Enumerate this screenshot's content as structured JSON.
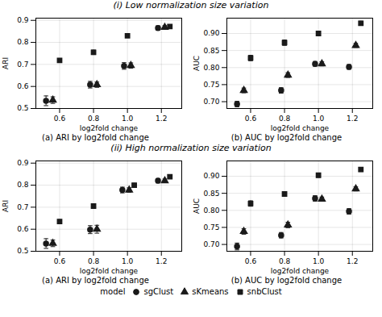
{
  "chart_data": [
    {
      "type": "scatter",
      "title": "(i) Low normalization size variation",
      "subtitle": "(a) ARI by log2fold change",
      "xlabel": "log2fold change",
      "ylabel": "ARI",
      "grid": true,
      "xlim": [
        0.46,
        1.32
      ],
      "xticks": [
        0.6,
        0.8,
        {
          "value": 1.0,
          "label": "1.0"
        },
        1.2
      ],
      "ylim": [
        0.5,
        0.91
      ],
      "yticks": [
        0.5,
        0.6,
        0.7,
        0.8,
        0.9
      ],
      "series": [
        {
          "name": "sgClust",
          "color": "#1a1a1a",
          "marker": "circle",
          "x": [
            0.52,
            0.78,
            0.98,
            1.18
          ],
          "values": [
            0.535,
            0.608,
            0.693,
            0.865
          ],
          "yerr": [
            0.022,
            0.015,
            0.015,
            0.01
          ]
        },
        {
          "name": "sKmeans",
          "color": "#1a1a1a",
          "marker": "triangle",
          "x": [
            0.56,
            0.82,
            1.02,
            1.22
          ],
          "values": [
            0.538,
            0.608,
            0.695,
            0.868
          ],
          "yerr": [
            0.015,
            0.012,
            0.012,
            0.008
          ]
        },
        {
          "name": "snbClust",
          "color": "#1a1a1a",
          "marker": "square",
          "x": [
            0.6,
            0.8,
            1.0,
            1.25
          ],
          "values": [
            0.718,
            0.755,
            0.83,
            0.872
          ],
          "yerr": [
            0.008,
            0.01,
            0.008,
            0.008
          ]
        }
      ]
    },
    {
      "type": "scatter",
      "subtitle": "(b) AUC by log2fold change",
      "xlabel": "log2fold change",
      "ylabel": "AUC",
      "grid": true,
      "xlim": [
        0.46,
        1.32
      ],
      "xticks": [
        0.6,
        0.8,
        {
          "value": 1.0,
          "label": "1.0"
        },
        1.2
      ],
      "ylim": [
        0.68,
        0.945
      ],
      "yticks": [
        {
          "value": 0.7,
          "label": "0.70"
        },
        {
          "value": 0.75,
          "label": "0.75"
        },
        {
          "value": 0.8,
          "label": "0.80"
        },
        {
          "value": 0.85,
          "label": "0.85"
        },
        {
          "value": 0.9,
          "label": "0.90"
        }
      ],
      "series": [
        {
          "name": "sgClust",
          "color": "#1a1a1a",
          "marker": "circle",
          "x": [
            0.52,
            0.78,
            0.98,
            1.18
          ],
          "values": [
            0.693,
            0.733,
            0.811,
            0.802
          ],
          "yerr": [
            0.008,
            0.008,
            0.007,
            0.007
          ]
        },
        {
          "name": "sKmeans",
          "color": "#1a1a1a",
          "marker": "triangle",
          "x": [
            0.56,
            0.82,
            1.02,
            1.22
          ],
          "values": [
            0.733,
            0.778,
            0.811,
            0.865
          ],
          "yerr": [
            0.007,
            0.007,
            0.006,
            0.006
          ]
        },
        {
          "name": "snbClust",
          "color": "#1a1a1a",
          "marker": "square",
          "x": [
            0.6,
            0.8,
            1.0,
            1.25
          ],
          "values": [
            0.828,
            0.873,
            0.9,
            0.93
          ],
          "yerr": [
            0.008,
            0.008,
            0.006,
            0.006
          ]
        }
      ]
    },
    {
      "type": "scatter",
      "title": "(ii) High normalization size variation",
      "subtitle": "(a) ARI by log2fold change",
      "xlabel": "log2fold change",
      "ylabel": "ARI",
      "grid": true,
      "xlim": [
        0.46,
        1.32
      ],
      "xticks": [
        0.6,
        0.8,
        {
          "value": 1.0,
          "label": "1.0"
        },
        1.2
      ],
      "ylim": [
        0.5,
        0.91
      ],
      "yticks": [
        0.5,
        0.6,
        0.7,
        0.8,
        0.9
      ],
      "series": [
        {
          "name": "sgClust",
          "color": "#1a1a1a",
          "marker": "circle",
          "x": [
            0.52,
            0.78,
            0.97,
            1.18
          ],
          "values": [
            0.535,
            0.598,
            0.778,
            0.82
          ],
          "yerr": [
            0.022,
            0.018,
            0.013,
            0.01
          ]
        },
        {
          "name": "sKmeans",
          "color": "#1a1a1a",
          "marker": "triangle",
          "x": [
            0.56,
            0.82,
            1.01,
            1.22
          ],
          "values": [
            0.536,
            0.6,
            0.778,
            0.82
          ],
          "yerr": [
            0.015,
            0.018,
            0.01,
            0.008
          ]
        },
        {
          "name": "snbClust",
          "color": "#1a1a1a",
          "marker": "square",
          "x": [
            0.6,
            0.8,
            1.04,
            1.25
          ],
          "values": [
            0.635,
            0.705,
            0.8,
            0.838
          ],
          "yerr": [
            0.008,
            0.01,
            0.008,
            0.008
          ]
        }
      ]
    },
    {
      "type": "scatter",
      "subtitle": "(b) AUC by log2fold change",
      "xlabel": "log2fold change",
      "ylabel": "AUC",
      "grid": true,
      "xlim": [
        0.46,
        1.32
      ],
      "xticks": [
        0.6,
        0.8,
        {
          "value": 1.0,
          "label": "1.0"
        },
        1.2
      ],
      "ylim": [
        0.68,
        0.945
      ],
      "yticks": [
        {
          "value": 0.7,
          "label": "0.70"
        },
        {
          "value": 0.75,
          "label": "0.75"
        },
        {
          "value": 0.8,
          "label": "0.80"
        },
        {
          "value": 0.85,
          "label": "0.85"
        },
        {
          "value": 0.9,
          "label": "0.90"
        }
      ],
      "legend": "bottom",
      "legend_title": "model",
      "series": [
        {
          "name": "sgClust",
          "color": "#1a1a1a",
          "marker": "circle",
          "x": [
            0.52,
            0.78,
            0.98,
            1.18
          ],
          "values": [
            0.694,
            0.727,
            0.835,
            0.797
          ],
          "yerr": [
            0.01,
            0.008,
            0.008,
            0.008
          ]
        },
        {
          "name": "sKmeans",
          "color": "#1a1a1a",
          "marker": "triangle",
          "x": [
            0.56,
            0.82,
            1.02,
            1.22
          ],
          "values": [
            0.738,
            0.757,
            0.833,
            0.863
          ],
          "yerr": [
            0.008,
            0.008,
            0.006,
            0.006
          ]
        },
        {
          "name": "snbClust",
          "color": "#1a1a1a",
          "marker": "square",
          "x": [
            0.6,
            0.8,
            1.0,
            1.25
          ],
          "values": [
            0.82,
            0.848,
            0.903,
            0.92
          ],
          "yerr": [
            0.008,
            0.006,
            0.006,
            0.006
          ]
        }
      ]
    }
  ]
}
